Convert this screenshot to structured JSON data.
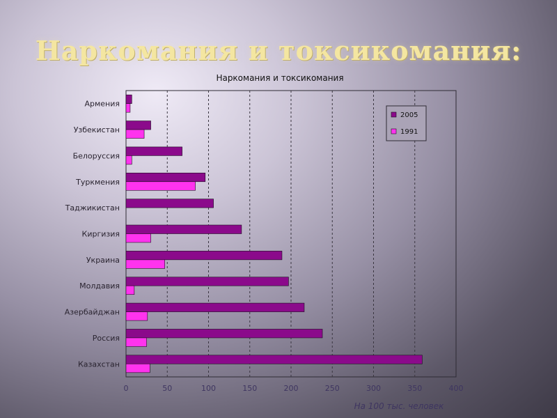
{
  "slide": {
    "title": "Наркомания и токсикомания:"
  },
  "chart_data": {
    "type": "bar",
    "orientation": "horizontal",
    "title": "Наркомания и токсикомания",
    "xlabel": "На 100 тыс. человек",
    "ylabel": "",
    "xlim": [
      0,
      400
    ],
    "xticks": [
      0,
      50,
      100,
      150,
      200,
      250,
      300,
      350,
      400
    ],
    "grid": "vertical dashed",
    "legend_position": "top-right",
    "categories": [
      "Армения",
      "Узбекистан",
      "Белоруссия",
      "Туркмения",
      "Таджикистан",
      "Киргизия",
      "Украина",
      "Молдавия",
      "Азербайджан",
      "Россия",
      "Казахстан"
    ],
    "series": [
      {
        "name": "2005",
        "color": "#8b0a8b",
        "values": [
          7,
          30,
          68,
          96,
          106,
          140,
          189,
          197,
          216,
          238,
          359
        ]
      },
      {
        "name": "1991",
        "color": "#ff33ee",
        "values": [
          5,
          22,
          7,
          84,
          null,
          30,
          47,
          10,
          26,
          25,
          29
        ]
      }
    ]
  }
}
